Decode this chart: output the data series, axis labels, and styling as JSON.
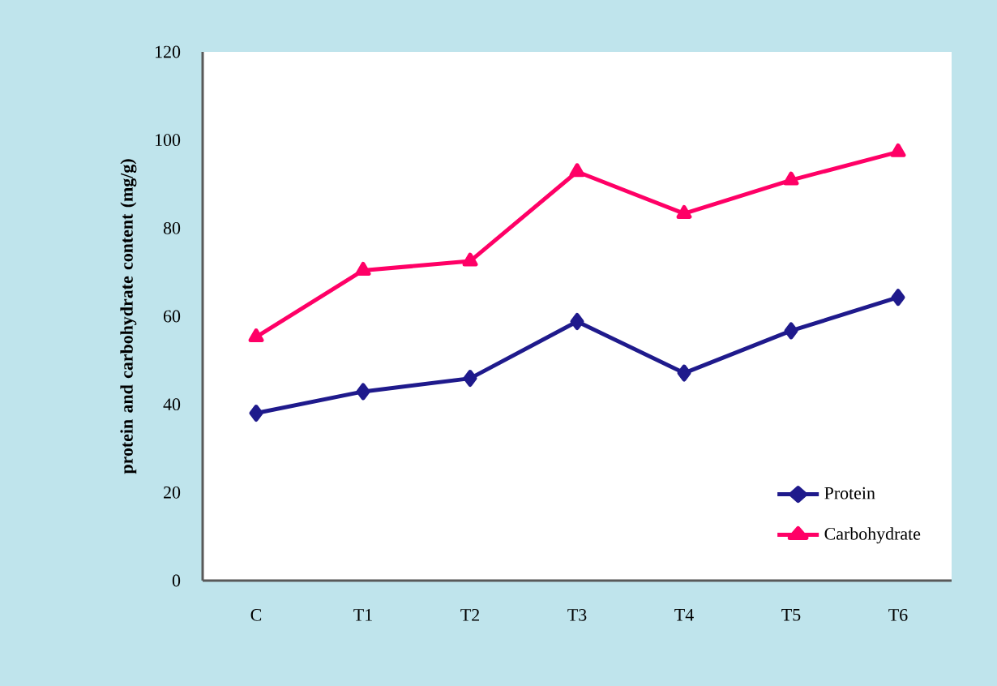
{
  "chart_data": {
    "type": "line",
    "ylabel": "protein and carbohydrate content (mg/g)",
    "categories": [
      "C",
      "T1",
      "T2",
      "T3",
      "T4",
      "T5",
      "T6"
    ],
    "series": [
      {
        "name": "Protein",
        "color": "#1f1a8c",
        "marker": "diamond",
        "values": [
          38.0,
          42.9,
          45.9,
          58.8,
          47.1,
          56.7,
          64.3
        ]
      },
      {
        "name": "Carbohydrate",
        "color": "#ff0066",
        "marker": "triangle",
        "values": [
          55.3,
          70.4,
          72.5,
          92.8,
          83.3,
          90.9,
          97.3
        ]
      }
    ],
    "ylim": [
      0,
      120
    ],
    "yticks": [
      0,
      20,
      40,
      60,
      80,
      100,
      120
    ],
    "grid": false,
    "legend": "bottom right",
    "line_style": "solid"
  }
}
